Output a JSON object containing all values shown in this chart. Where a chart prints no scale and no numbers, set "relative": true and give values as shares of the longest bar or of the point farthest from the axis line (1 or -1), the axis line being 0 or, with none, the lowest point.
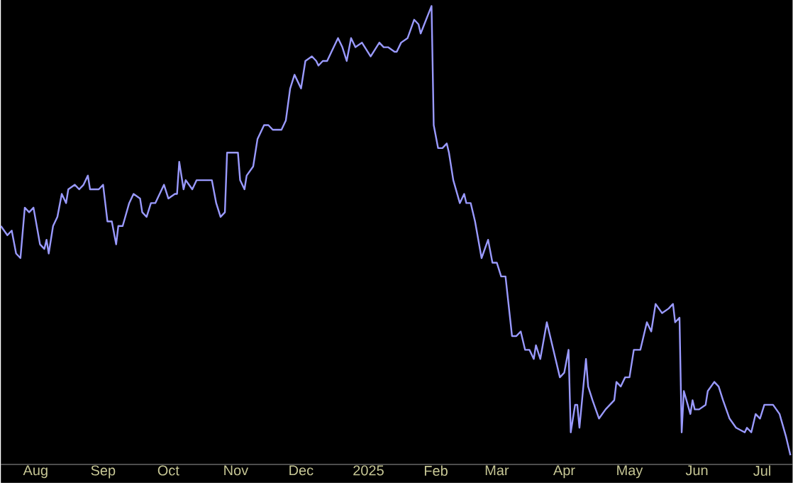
{
  "chart_data": {
    "type": "line",
    "relative": true,
    "xlim": [
      "2024-07-16",
      "2025-07-15"
    ],
    "xticks": [
      {
        "value": "2024-08-01",
        "label": "Aug"
      },
      {
        "value": "2024-09-01",
        "label": "Sep"
      },
      {
        "value": "2024-10-01",
        "label": "Oct"
      },
      {
        "value": "2024-11-01",
        "label": "Nov"
      },
      {
        "value": "2024-12-01",
        "label": "Dec"
      },
      {
        "value": "2025-01-01",
        "label": "2025"
      },
      {
        "value": "2025-02-01",
        "label": "Feb"
      },
      {
        "value": "2025-03-01",
        "label": "Mar"
      },
      {
        "value": "2025-04-01",
        "label": "Apr"
      },
      {
        "value": "2025-05-01",
        "label": "May"
      },
      {
        "value": "2025-06-01",
        "label": "Jun"
      },
      {
        "value": "2025-07-01",
        "label": "Jul"
      }
    ],
    "x": [
      "2024-07-16",
      "2024-07-19",
      "2024-07-21",
      "2024-07-23",
      "2024-07-25",
      "2024-07-27",
      "2024-07-29",
      "2024-07-31",
      "2024-08-03",
      "2024-08-05",
      "2024-08-06",
      "2024-08-07",
      "2024-08-09",
      "2024-08-11",
      "2024-08-13",
      "2024-08-15",
      "2024-08-16",
      "2024-08-19",
      "2024-08-21",
      "2024-08-23",
      "2024-08-25",
      "2024-08-26",
      "2024-08-30",
      "2024-09-01",
      "2024-09-03",
      "2024-09-05",
      "2024-09-07",
      "2024-09-08",
      "2024-09-10",
      "2024-09-13",
      "2024-09-15",
      "2024-09-18",
      "2024-09-19",
      "2024-09-21",
      "2024-09-23",
      "2024-09-25",
      "2024-09-29",
      "2024-10-01",
      "2024-10-04",
      "2024-10-05",
      "2024-10-06",
      "2024-10-08",
      "2024-10-09",
      "2024-10-12",
      "2024-10-14",
      "2024-10-17",
      "2024-10-21",
      "2024-10-23",
      "2024-10-25",
      "2024-10-27",
      "2024-10-28",
      "2024-10-31",
      "2024-11-02",
      "2024-11-03",
      "2024-11-05",
      "2024-11-06",
      "2024-11-09",
      "2024-11-11",
      "2024-11-14",
      "2024-11-16",
      "2024-11-18",
      "2024-11-22",
      "2024-11-24",
      "2024-11-26",
      "2024-11-28",
      "2024-12-01",
      "2024-12-03",
      "2024-12-06",
      "2024-12-08",
      "2024-12-09",
      "2024-12-11",
      "2024-12-13",
      "2024-12-15",
      "2024-12-18",
      "2024-12-20",
      "2024-12-22",
      "2024-12-24",
      "2024-12-26",
      "2024-12-29",
      "2025-01-02",
      "2025-01-06",
      "2025-01-08",
      "2025-01-10",
      "2025-01-13",
      "2025-01-14",
      "2025-01-16",
      "2025-01-19",
      "2025-01-22",
      "2025-01-24",
      "2025-01-25",
      "2025-01-30",
      "2025-01-31",
      "2025-02-02",
      "2025-02-04",
      "2025-02-06",
      "2025-02-07",
      "2025-02-09",
      "2025-02-12",
      "2025-02-14",
      "2025-02-15",
      "2025-02-17",
      "2025-02-19",
      "2025-02-22",
      "2025-02-25",
      "2025-02-27",
      "2025-03-01",
      "2025-03-03",
      "2025-03-05",
      "2025-03-08",
      "2025-03-10",
      "2025-03-12",
      "2025-03-14",
      "2025-03-16",
      "2025-03-18",
      "2025-03-19",
      "2025-03-21",
      "2025-03-24",
      "2025-03-27",
      "2025-03-30",
      "2025-04-01",
      "2025-04-03",
      "2025-04-04",
      "2025-04-06",
      "2025-04-07",
      "2025-04-08",
      "2025-04-11",
      "2025-04-12",
      "2025-04-14",
      "2025-04-17",
      "2025-04-20",
      "2025-04-22",
      "2025-04-24",
      "2025-04-25",
      "2025-04-27",
      "2025-04-29",
      "2025-05-01",
      "2025-05-03",
      "2025-05-06",
      "2025-05-09",
      "2025-05-11",
      "2025-05-13",
      "2025-05-16",
      "2025-05-19",
      "2025-05-21",
      "2025-05-22",
      "2025-05-24",
      "2025-05-25",
      "2025-05-26",
      "2025-05-29",
      "2025-05-30",
      "2025-05-31",
      "2025-06-02",
      "2025-06-05",
      "2025-06-06",
      "2025-06-09",
      "2025-06-11",
      "2025-06-13",
      "2025-06-16",
      "2025-06-19",
      "2025-06-23",
      "2025-06-24",
      "2025-06-26",
      "2025-06-28",
      "2025-06-30",
      "2025-07-02",
      "2025-07-06",
      "2025-07-09",
      "2025-07-12",
      "2025-07-14"
    ],
    "values": [
      0.52,
      0.5,
      0.51,
      0.46,
      0.45,
      0.56,
      0.55,
      0.56,
      0.48,
      0.47,
      0.49,
      0.46,
      0.52,
      0.54,
      0.59,
      0.57,
      0.6,
      0.61,
      0.6,
      0.61,
      0.63,
      0.6,
      0.6,
      0.61,
      0.53,
      0.53,
      0.48,
      0.52,
      0.52,
      0.57,
      0.59,
      0.58,
      0.55,
      0.54,
      0.57,
      0.57,
      0.61,
      0.58,
      0.59,
      0.59,
      0.66,
      0.6,
      0.62,
      0.6,
      0.62,
      0.62,
      0.62,
      0.57,
      0.54,
      0.55,
      0.68,
      0.68,
      0.68,
      0.62,
      0.6,
      0.63,
      0.65,
      0.71,
      0.74,
      0.74,
      0.73,
      0.73,
      0.75,
      0.82,
      0.85,
      0.82,
      0.88,
      0.89,
      0.88,
      0.87,
      0.88,
      0.88,
      0.9,
      0.93,
      0.91,
      0.88,
      0.93,
      0.91,
      0.92,
      0.89,
      0.92,
      0.91,
      0.91,
      0.9,
      0.9,
      0.92,
      0.93,
      0.97,
      0.96,
      0.94,
      1.0,
      0.74,
      0.69,
      0.69,
      0.7,
      0.68,
      0.62,
      0.57,
      0.59,
      0.57,
      0.57,
      0.53,
      0.45,
      0.49,
      0.44,
      0.44,
      0.41,
      0.41,
      0.28,
      0.28,
      0.29,
      0.25,
      0.25,
      0.23,
      0.26,
      0.23,
      0.31,
      0.25,
      0.19,
      0.2,
      0.25,
      0.07,
      0.13,
      0.13,
      0.08,
      0.23,
      0.17,
      0.14,
      0.1,
      0.12,
      0.13,
      0.14,
      0.18,
      0.17,
      0.19,
      0.19,
      0.25,
      0.25,
      0.31,
      0.29,
      0.35,
      0.33,
      0.34,
      0.35,
      0.31,
      0.32,
      0.07,
      0.16,
      0.11,
      0.14,
      0.12,
      0.12,
      0.13,
      0.16,
      0.18,
      0.17,
      0.14,
      0.1,
      0.08,
      0.07,
      0.08,
      0.07,
      0.11,
      0.1,
      0.13,
      0.13,
      0.11,
      0.06,
      0.02
    ],
    "color": "#9a9aff"
  }
}
